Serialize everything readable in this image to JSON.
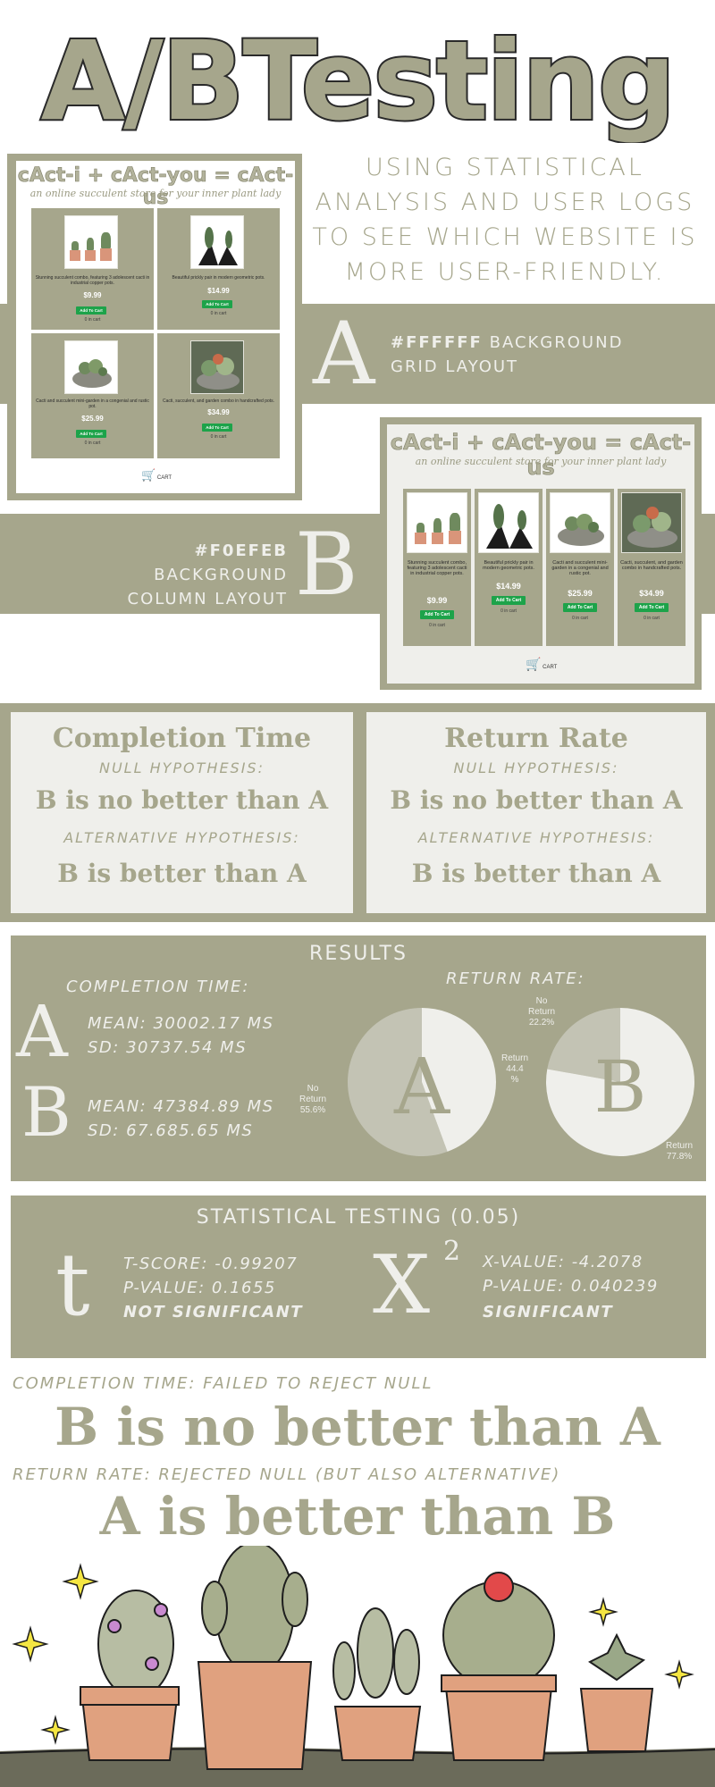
{
  "title": "A/BTesting",
  "subtitle": "USING STATISTICAL ANALYSIS AND USER LOGS TO SEE WHICH WEBSITE IS MORE USER-FRIENDLY.",
  "variant_a": {
    "letter": "A",
    "color_code": "#FFFFFF",
    "background_word": "BACKGROUND",
    "layout": "GRID LAYOUT"
  },
  "variant_b": {
    "letter": "B",
    "color_code": "#F0EFEB",
    "background_word": "BACKGROUND",
    "layout": "COLUMN LAYOUT"
  },
  "site": {
    "title": "cAct-i + cAct-you = cAct-us",
    "tagline": "an online succulent store for your inner plant lady",
    "cart_label": "CART",
    "add_button": "Add To Cart",
    "in_cart": "0 in cart",
    "products": [
      {
        "desc": "Stunning succulent combo, featuring 3 adolescent cacti in industrial copper pots.",
        "price": "$9.99"
      },
      {
        "desc": "Beautiful prickly pair in modern geometric pots.",
        "price": "$14.99"
      },
      {
        "desc": "Cacti and succulent mini-garden in a congenial and rustic pot.",
        "price": "$25.99"
      },
      {
        "desc": "Cacti, succulent, and garden combo in handcrafted pots.",
        "price": "$34.99"
      }
    ]
  },
  "hypotheses": {
    "completion": {
      "title": "Completion Time",
      "null_label": "NULL HYPOTHESIS:",
      "null": "B is no better than A",
      "alt_label": "ALTERNATIVE HYPOTHESIS:",
      "alt": "B is better than A"
    },
    "return": {
      "title": "Return Rate",
      "null_label": "NULL HYPOTHESIS:",
      "null": "B is no better than A",
      "alt_label": "ALTERNATIVE HYPOTHESIS:",
      "alt": "B is better than A"
    }
  },
  "results": {
    "heading": "RESULTS",
    "completion_label": "COMPLETION TIME:",
    "return_label": "RETURN RATE:",
    "a_mean": "MEAN: 30002.17 MS",
    "a_sd": "SD: 30737.54 MS",
    "b_mean": "MEAN: 47384.89 MS",
    "b_sd": "SD: 67.685.65 MS",
    "pie_a": {
      "return_label": "Return",
      "return_value": "44.4",
      "return_pct": "%",
      "no_return_label": "No Return",
      "no_return_value": "55.6%",
      "return_fraction": 0.444
    },
    "pie_b": {
      "return_label": "Return",
      "return_value": "77.8%",
      "no_return_label": "No Return",
      "no_return_value": "22.2%",
      "return_fraction": 0.778
    }
  },
  "stats": {
    "heading": "STATISTICAL TESTING (0.05)",
    "t_symbol": "t",
    "t_score": "T-SCORE: -0.99207",
    "t_p": "P-VALUE: 0.1655",
    "t_result": "NOT SIGNIFICANT",
    "chi_symbol": "X",
    "chi_sup": "2",
    "chi_value": "X-VALUE: -4.2078",
    "chi_p": "P-VALUE: 0.040239",
    "chi_result": "SIGNIFICANT"
  },
  "conclusion": {
    "completion_label": "COMPLETION TIME: FAILED TO REJECT NULL",
    "completion_stmt": "B is no better than A",
    "return_label": "RETURN RATE: REJECTED NULL (BUT ALSO ALTERNATIVE)",
    "return_stmt": "A is better than B"
  },
  "colors": {
    "sage": "#a6a68c",
    "offwhite": "#efefeb",
    "button_green": "#1da34a",
    "pot": "#e0a17f"
  }
}
